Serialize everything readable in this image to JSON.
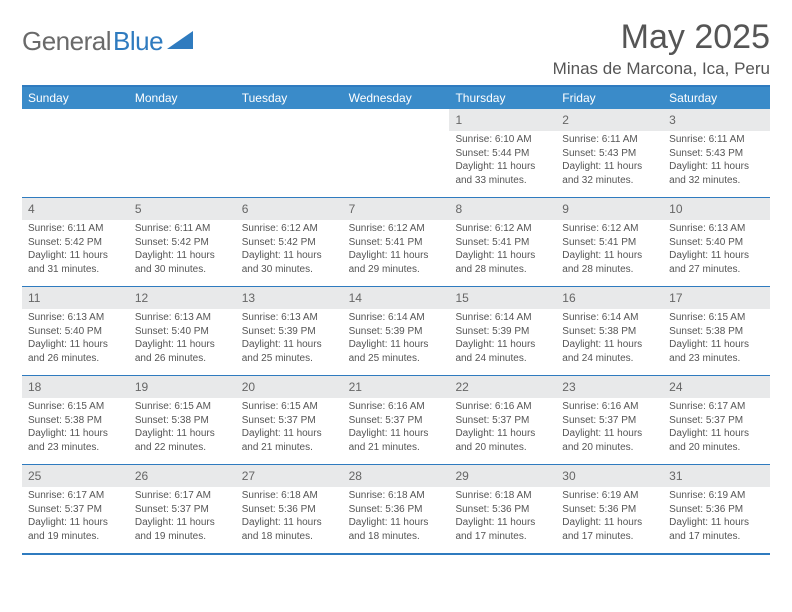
{
  "brand": {
    "name1": "General",
    "name2": "Blue",
    "shape_color": "#2f7bbf"
  },
  "title": "May 2025",
  "location": "Minas de Marcona, Ica, Peru",
  "colors": {
    "header_bg": "#3a8bc9",
    "border": "#2f7bbf",
    "daynum_bg": "#e8e9ea",
    "text": "#555555",
    "background": "#ffffff"
  },
  "typography": {
    "title_fontsize": 34,
    "location_fontsize": 17,
    "dow_fontsize": 12,
    "cell_fontsize": 10
  },
  "dow": [
    "Sunday",
    "Monday",
    "Tuesday",
    "Wednesday",
    "Thursday",
    "Friday",
    "Saturday"
  ],
  "weeks": [
    [
      {
        "n": "",
        "t": ""
      },
      {
        "n": "",
        "t": ""
      },
      {
        "n": "",
        "t": ""
      },
      {
        "n": "",
        "t": ""
      },
      {
        "n": "1",
        "t": "Sunrise: 6:10 AM\nSunset: 5:44 PM\nDaylight: 11 hours and 33 minutes."
      },
      {
        "n": "2",
        "t": "Sunrise: 6:11 AM\nSunset: 5:43 PM\nDaylight: 11 hours and 32 minutes."
      },
      {
        "n": "3",
        "t": "Sunrise: 6:11 AM\nSunset: 5:43 PM\nDaylight: 11 hours and 32 minutes."
      }
    ],
    [
      {
        "n": "4",
        "t": "Sunrise: 6:11 AM\nSunset: 5:42 PM\nDaylight: 11 hours and 31 minutes."
      },
      {
        "n": "5",
        "t": "Sunrise: 6:11 AM\nSunset: 5:42 PM\nDaylight: 11 hours and 30 minutes."
      },
      {
        "n": "6",
        "t": "Sunrise: 6:12 AM\nSunset: 5:42 PM\nDaylight: 11 hours and 30 minutes."
      },
      {
        "n": "7",
        "t": "Sunrise: 6:12 AM\nSunset: 5:41 PM\nDaylight: 11 hours and 29 minutes."
      },
      {
        "n": "8",
        "t": "Sunrise: 6:12 AM\nSunset: 5:41 PM\nDaylight: 11 hours and 28 minutes."
      },
      {
        "n": "9",
        "t": "Sunrise: 6:12 AM\nSunset: 5:41 PM\nDaylight: 11 hours and 28 minutes."
      },
      {
        "n": "10",
        "t": "Sunrise: 6:13 AM\nSunset: 5:40 PM\nDaylight: 11 hours and 27 minutes."
      }
    ],
    [
      {
        "n": "11",
        "t": "Sunrise: 6:13 AM\nSunset: 5:40 PM\nDaylight: 11 hours and 26 minutes."
      },
      {
        "n": "12",
        "t": "Sunrise: 6:13 AM\nSunset: 5:40 PM\nDaylight: 11 hours and 26 minutes."
      },
      {
        "n": "13",
        "t": "Sunrise: 6:13 AM\nSunset: 5:39 PM\nDaylight: 11 hours and 25 minutes."
      },
      {
        "n": "14",
        "t": "Sunrise: 6:14 AM\nSunset: 5:39 PM\nDaylight: 11 hours and 25 minutes."
      },
      {
        "n": "15",
        "t": "Sunrise: 6:14 AM\nSunset: 5:39 PM\nDaylight: 11 hours and 24 minutes."
      },
      {
        "n": "16",
        "t": "Sunrise: 6:14 AM\nSunset: 5:38 PM\nDaylight: 11 hours and 24 minutes."
      },
      {
        "n": "17",
        "t": "Sunrise: 6:15 AM\nSunset: 5:38 PM\nDaylight: 11 hours and 23 minutes."
      }
    ],
    [
      {
        "n": "18",
        "t": "Sunrise: 6:15 AM\nSunset: 5:38 PM\nDaylight: 11 hours and 23 minutes."
      },
      {
        "n": "19",
        "t": "Sunrise: 6:15 AM\nSunset: 5:38 PM\nDaylight: 11 hours and 22 minutes."
      },
      {
        "n": "20",
        "t": "Sunrise: 6:15 AM\nSunset: 5:37 PM\nDaylight: 11 hours and 21 minutes."
      },
      {
        "n": "21",
        "t": "Sunrise: 6:16 AM\nSunset: 5:37 PM\nDaylight: 11 hours and 21 minutes."
      },
      {
        "n": "22",
        "t": "Sunrise: 6:16 AM\nSunset: 5:37 PM\nDaylight: 11 hours and 20 minutes."
      },
      {
        "n": "23",
        "t": "Sunrise: 6:16 AM\nSunset: 5:37 PM\nDaylight: 11 hours and 20 minutes."
      },
      {
        "n": "24",
        "t": "Sunrise: 6:17 AM\nSunset: 5:37 PM\nDaylight: 11 hours and 20 minutes."
      }
    ],
    [
      {
        "n": "25",
        "t": "Sunrise: 6:17 AM\nSunset: 5:37 PM\nDaylight: 11 hours and 19 minutes."
      },
      {
        "n": "26",
        "t": "Sunrise: 6:17 AM\nSunset: 5:37 PM\nDaylight: 11 hours and 19 minutes."
      },
      {
        "n": "27",
        "t": "Sunrise: 6:18 AM\nSunset: 5:36 PM\nDaylight: 11 hours and 18 minutes."
      },
      {
        "n": "28",
        "t": "Sunrise: 6:18 AM\nSunset: 5:36 PM\nDaylight: 11 hours and 18 minutes."
      },
      {
        "n": "29",
        "t": "Sunrise: 6:18 AM\nSunset: 5:36 PM\nDaylight: 11 hours and 17 minutes."
      },
      {
        "n": "30",
        "t": "Sunrise: 6:19 AM\nSunset: 5:36 PM\nDaylight: 11 hours and 17 minutes."
      },
      {
        "n": "31",
        "t": "Sunrise: 6:19 AM\nSunset: 5:36 PM\nDaylight: 11 hours and 17 minutes."
      }
    ]
  ]
}
